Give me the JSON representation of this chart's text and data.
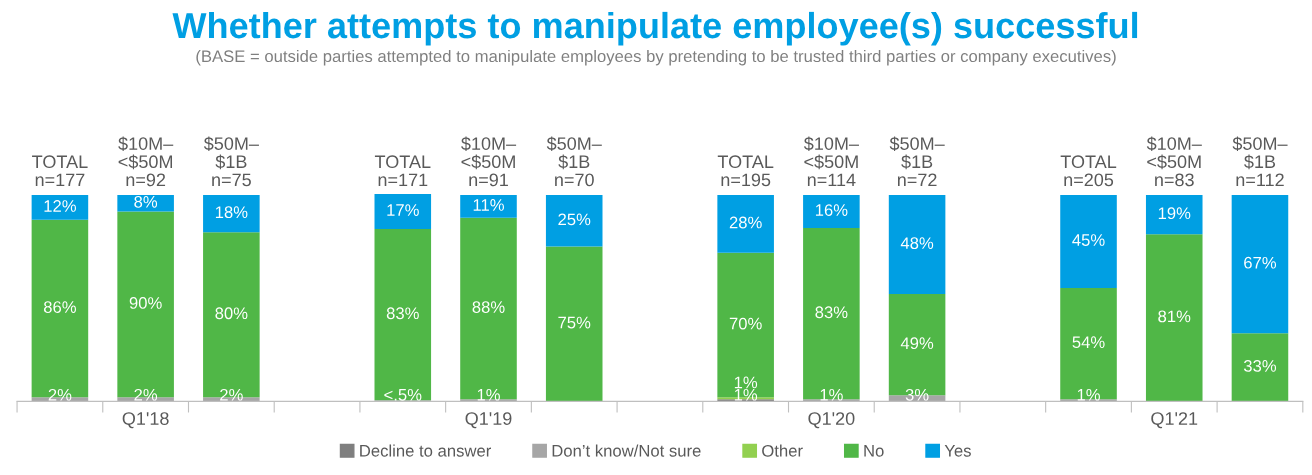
{
  "chart_data": {
    "type": "bar",
    "stacked": true,
    "data_labels": true,
    "legend": "bottom",
    "grid": false,
    "title": "Whether attempts to manipulate employee(s) successful",
    "subtitle": "(BASE = outside parties attempted to manipulate employees by pretending to be trusted third parties or company executives)",
    "annotations": [
      "Q1'18",
      "Q1'19",
      "Q1'20",
      "Q1'21"
    ],
    "categories": [
      "TOTAL\nn=177",
      "$10M–\n<$50M\nn=92",
      "$50M–\n$1B\nn=75",
      null,
      "TOTAL\nn=171",
      "$10M–\n<$50M\nn=91",
      "$50M–\n$1B\nn=70",
      null,
      "TOTAL\nn=195",
      "$10M–\n<$50M\nn=114",
      "$50M–\n$1B\nn=72",
      null,
      "TOTAL\nn=205",
      "$10M–\n<$50M\nn=83",
      "$50M–\n$1B\nn=112"
    ],
    "series": [
      {
        "name": "Decline to answer",
        "color": "#7f7f7f",
        "values": [
          null,
          null,
          null,
          null,
          null,
          null,
          null,
          null,
          1,
          null,
          null,
          null,
          null,
          null,
          null
        ],
        "value_labels": [
          null,
          null,
          null,
          null,
          null,
          null,
          null,
          null,
          "1%",
          null,
          null,
          null,
          null,
          null,
          null
        ]
      },
      {
        "name": "Don’t know/Not sure",
        "color": "#a6a6a6",
        "values": [
          2,
          2,
          2,
          null,
          0.5,
          1,
          null,
          null,
          null,
          1,
          3,
          null,
          1,
          null,
          null
        ],
        "value_labels": [
          "2%",
          "2%",
          "2%",
          null,
          "<.5%",
          "1%",
          null,
          null,
          null,
          "1%",
          "3%",
          null,
          "1%",
          null,
          null
        ]
      },
      {
        "name": "Other",
        "color": "#92d050",
        "values": [
          null,
          null,
          null,
          null,
          null,
          null,
          null,
          null,
          1,
          null,
          null,
          null,
          null,
          null,
          null
        ],
        "value_labels": [
          null,
          null,
          null,
          null,
          null,
          null,
          null,
          null,
          "1%",
          null,
          null,
          null,
          null,
          null,
          null
        ]
      },
      {
        "name": "No",
        "color": "#50b747",
        "values": [
          86,
          90,
          80,
          null,
          83,
          88,
          75,
          null,
          70,
          83,
          49,
          null,
          54,
          81,
          33
        ],
        "value_labels": [
          "86%",
          "90%",
          "80%",
          null,
          "83%",
          "88%",
          "75%",
          null,
          "70%",
          "83%",
          "49%",
          null,
          "54%",
          "81%",
          "33%"
        ]
      },
      {
        "name": "Yes",
        "color": "#009fe3",
        "values": [
          12,
          8,
          18,
          null,
          17,
          11,
          25,
          null,
          28,
          16,
          48,
          null,
          45,
          19,
          67
        ],
        "value_labels": [
          "12%",
          "8%",
          "18%",
          null,
          "17%",
          "11%",
          "25%",
          null,
          "28%",
          "16%",
          "48%",
          null,
          "45%",
          "19%",
          "67%"
        ]
      }
    ]
  }
}
